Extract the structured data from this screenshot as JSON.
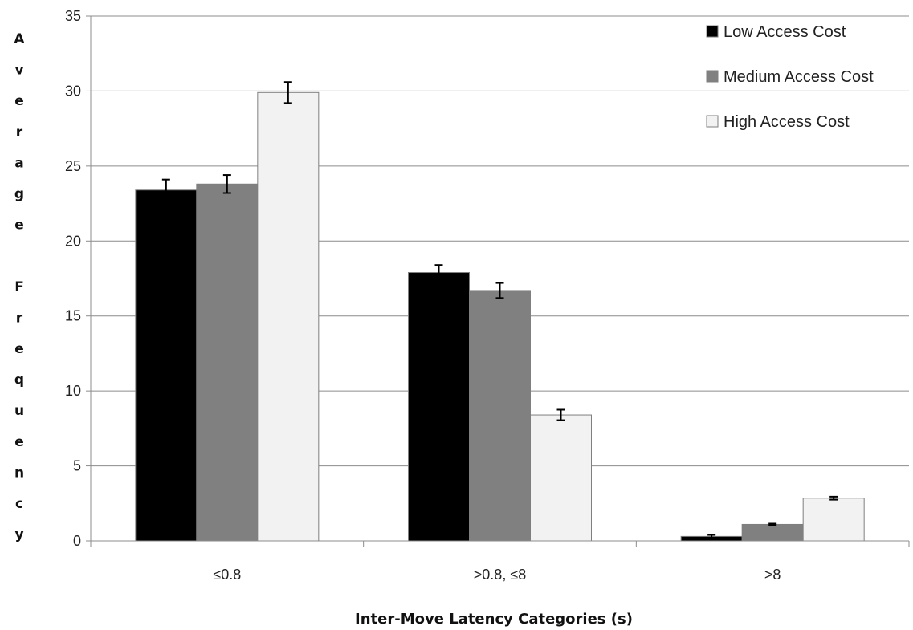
{
  "chart_data": {
    "type": "bar",
    "title": "",
    "xlabel": "Inter-Move Latency Categories (s)",
    "ylabel": "Average Frequency",
    "ylim": [
      0,
      35
    ],
    "yticks": [
      0,
      5,
      10,
      15,
      20,
      25,
      30,
      35
    ],
    "grid": true,
    "legend_position": "top-right",
    "categories": [
      "≤0.8",
      ">0.8, ≤8",
      ">8"
    ],
    "series": [
      {
        "name": "Low Access Cost",
        "color": "#000000",
        "values": [
          23.4,
          17.9,
          0.3
        ],
        "errors": [
          0.7,
          0.5,
          0.1
        ]
      },
      {
        "name": "Medium Access Cost",
        "color": "#808080",
        "values": [
          23.8,
          16.7,
          1.1
        ],
        "errors": [
          0.6,
          0.5,
          0.05
        ]
      },
      {
        "name": "High Access Cost",
        "color": "#f2f2f2",
        "values": [
          29.9,
          8.4,
          2.85
        ],
        "errors": [
          0.7,
          0.35,
          0.1
        ]
      }
    ]
  }
}
